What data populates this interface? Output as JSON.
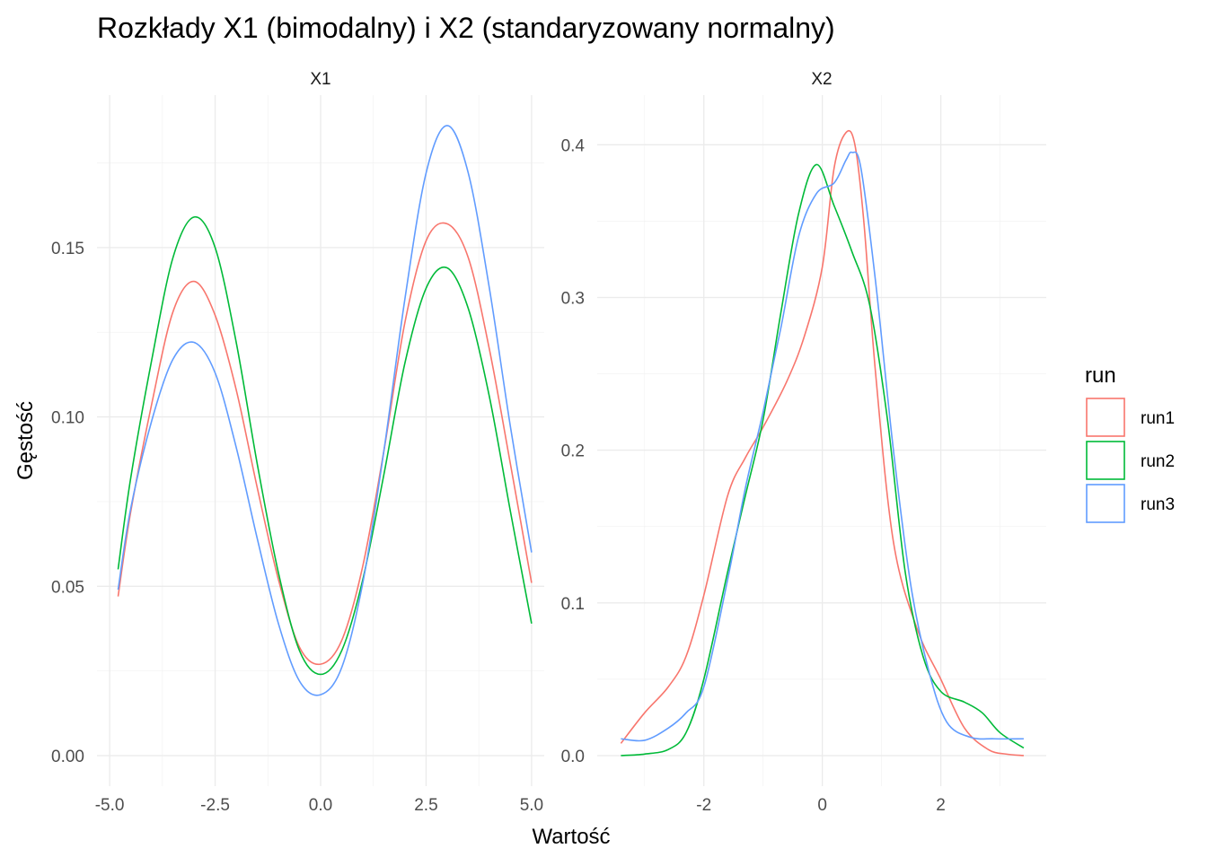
{
  "title": "Rozkłady X1 (bimodalny) i X2 (standaryzowany normalny)",
  "legend": {
    "title": "run",
    "items": [
      {
        "label": "run1",
        "color": "#F8766D"
      },
      {
        "label": "run2",
        "color": "#00BA38"
      },
      {
        "label": "run3",
        "color": "#619CFF"
      }
    ]
  },
  "chart_data": [
    {
      "type": "line",
      "panel": "X1",
      "xlabel": "Wartość",
      "ylabel": "Gęstość",
      "xlim": [
        -5.3,
        5.3
      ],
      "ylim": [
        -0.009,
        0.195
      ],
      "xticks": [
        -5.0,
        -2.5,
        0.0,
        2.5,
        5.0
      ],
      "xtick_labels": [
        "-5.0",
        "-2.5",
        "0.0",
        "2.5",
        "5.0"
      ],
      "yticks": [
        0.0,
        0.05,
        0.1,
        0.15
      ],
      "ytick_labels": [
        "0.00",
        "0.05",
        "0.10",
        "0.15"
      ],
      "series": [
        {
          "name": "run1",
          "x": [
            -4.8,
            -4.5,
            -4.0,
            -3.5,
            -3.0,
            -2.5,
            -2.0,
            -1.5,
            -1.0,
            -0.5,
            0.0,
            0.5,
            1.0,
            1.5,
            2.0,
            2.5,
            3.0,
            3.5,
            4.0,
            4.5,
            5.0
          ],
          "y": [
            0.047,
            0.072,
            0.104,
            0.131,
            0.14,
            0.13,
            0.108,
            0.079,
            0.052,
            0.032,
            0.027,
            0.034,
            0.056,
            0.09,
            0.128,
            0.152,
            0.157,
            0.147,
            0.12,
            0.086,
            0.051
          ]
        },
        {
          "name": "run2",
          "x": [
            -4.8,
            -4.5,
            -4.0,
            -3.5,
            -3.0,
            -2.5,
            -2.0,
            -1.5,
            -1.0,
            -0.5,
            0.0,
            0.5,
            1.0,
            1.5,
            2.0,
            2.5,
            3.0,
            3.5,
            4.0,
            4.5,
            5.0
          ],
          "y": [
            0.055,
            0.082,
            0.117,
            0.147,
            0.159,
            0.15,
            0.122,
            0.086,
            0.054,
            0.031,
            0.024,
            0.031,
            0.052,
            0.083,
            0.116,
            0.138,
            0.144,
            0.132,
            0.106,
            0.072,
            0.039
          ]
        },
        {
          "name": "run3",
          "x": [
            -4.8,
            -4.5,
            -4.0,
            -3.5,
            -3.0,
            -2.5,
            -2.0,
            -1.5,
            -1.0,
            -0.5,
            0.0,
            0.5,
            1.0,
            1.5,
            2.0,
            2.5,
            3.0,
            3.5,
            4.0,
            4.5,
            5.0
          ],
          "y": [
            0.049,
            0.073,
            0.099,
            0.117,
            0.122,
            0.113,
            0.091,
            0.064,
            0.039,
            0.022,
            0.018,
            0.026,
            0.051,
            0.09,
            0.135,
            0.172,
            0.186,
            0.172,
            0.138,
            0.097,
            0.06
          ]
        }
      ]
    },
    {
      "type": "line",
      "panel": "X2",
      "xlabel": "Wartość",
      "ylabel": "Gęstość",
      "xlim": [
        -3.8,
        3.78
      ],
      "ylim": [
        -0.02,
        0.4325
      ],
      "xticks": [
        -2,
        0,
        2
      ],
      "xtick_labels": [
        "-2",
        "0",
        "2"
      ],
      "yticks": [
        0.0,
        0.1,
        0.2,
        0.3,
        0.4
      ],
      "ytick_labels": [
        "0.0",
        "0.1",
        "0.2",
        "0.3",
        "0.4"
      ],
      "series": [
        {
          "name": "run1",
          "x": [
            -3.4,
            -3.0,
            -2.6,
            -2.3,
            -2.0,
            -1.6,
            -1.3,
            -1.0,
            -0.6,
            -0.3,
            0.0,
            0.2,
            0.4,
            0.55,
            0.7,
            0.9,
            1.2,
            1.6,
            2.0,
            2.4,
            2.8,
            3.1,
            3.4
          ],
          "y": [
            0.008,
            0.028,
            0.045,
            0.065,
            0.105,
            0.17,
            0.195,
            0.215,
            0.245,
            0.275,
            0.32,
            0.385,
            0.408,
            0.4,
            0.35,
            0.25,
            0.14,
            0.083,
            0.05,
            0.018,
            0.004,
            0.001,
            0.0
          ]
        },
        {
          "name": "run2",
          "x": [
            -3.4,
            -3.0,
            -2.6,
            -2.3,
            -2.0,
            -1.6,
            -1.3,
            -1.0,
            -0.7,
            -0.4,
            -0.1,
            0.2,
            0.5,
            0.8,
            1.1,
            1.4,
            1.7,
            2.0,
            2.4,
            2.7,
            3.0,
            3.4
          ],
          "y": [
            0.0,
            0.001,
            0.004,
            0.015,
            0.05,
            0.12,
            0.17,
            0.22,
            0.29,
            0.355,
            0.387,
            0.36,
            0.33,
            0.295,
            0.22,
            0.12,
            0.065,
            0.042,
            0.035,
            0.028,
            0.015,
            0.005
          ]
        },
        {
          "name": "run3",
          "x": [
            -3.4,
            -3.0,
            -2.6,
            -2.3,
            -2.0,
            -1.6,
            -1.3,
            -1.0,
            -0.7,
            -0.4,
            -0.1,
            0.2,
            0.4,
            0.5,
            0.65,
            0.9,
            1.2,
            1.5,
            1.8,
            2.1,
            2.5,
            2.9,
            3.4
          ],
          "y": [
            0.011,
            0.01,
            0.018,
            0.028,
            0.045,
            0.115,
            0.175,
            0.225,
            0.28,
            0.34,
            0.368,
            0.375,
            0.39,
            0.395,
            0.385,
            0.31,
            0.2,
            0.11,
            0.055,
            0.022,
            0.012,
            0.011,
            0.011
          ]
        }
      ]
    }
  ]
}
